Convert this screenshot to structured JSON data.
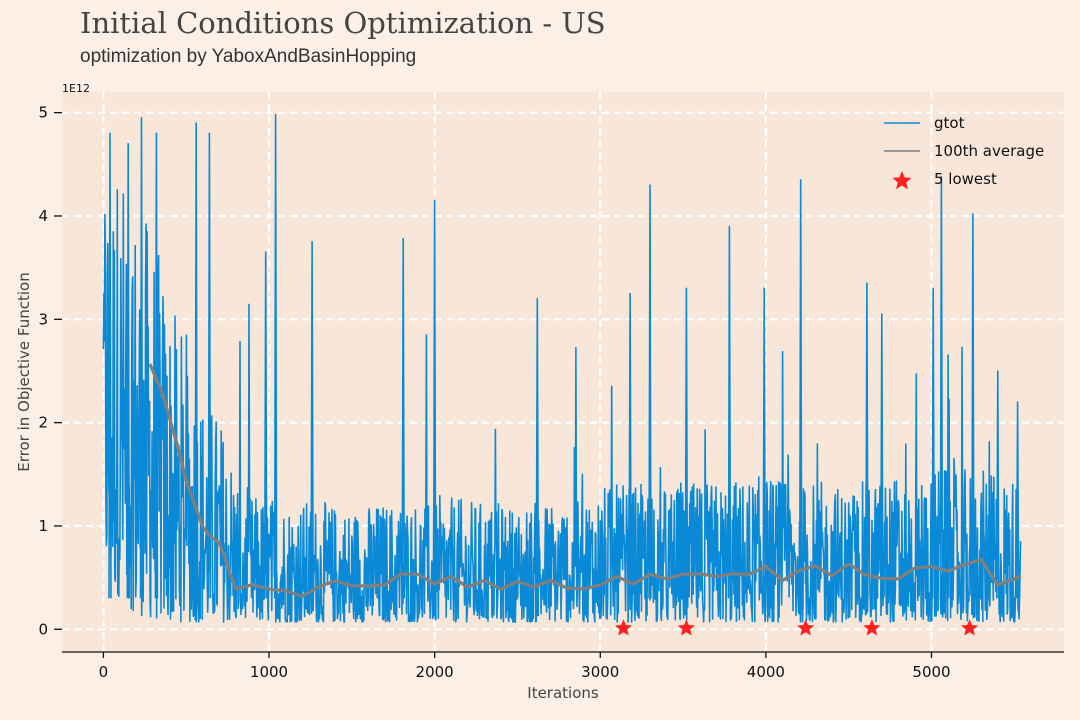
{
  "title": "Initial Conditions Optimization - US",
  "subtitle": "optimization by YaboxAndBasinHopping",
  "colors": {
    "background": "#fcf0e6",
    "plot_area": "#f8e6d9",
    "grid": "#ffffff",
    "gtot": "#0a8ad6",
    "average": "#7f7f7f",
    "lowest": "#ff2020"
  },
  "chart_data": {
    "type": "line",
    "xlabel": "Iterations",
    "ylabel": "Error in Objective Function",
    "y_scale_label": "1E12",
    "xlim": [
      -250,
      5800
    ],
    "ylim": [
      -0.22,
      5.2
    ],
    "x_ticks": [
      0,
      1000,
      2000,
      3000,
      4000,
      5000
    ],
    "y_ticks": [
      0,
      1,
      2,
      3,
      4,
      5
    ],
    "x_tick_labels": [
      "0",
      "1000",
      "2000",
      "3000",
      "4000",
      "5000"
    ],
    "y_tick_labels": [
      "0",
      "1",
      "2",
      "3",
      "4",
      "5"
    ],
    "grid": true,
    "legend_position": "top-right",
    "series": [
      {
        "name": "gtot",
        "kind": "noisy-line",
        "x_range": [
          0,
          5540
        ],
        "envelope_x": [
          0,
          100,
          200,
          300,
          400,
          500,
          600,
          700,
          800,
          900,
          1000,
          1500,
          2000,
          2500,
          3000,
          3500,
          4000,
          4500,
          5000,
          5540
        ],
        "envelope_high": [
          4.8,
          4.6,
          4.2,
          3.9,
          3.2,
          2.8,
          2.3,
          2.1,
          1.6,
          1.3,
          1.3,
          1.2,
          1.3,
          1.2,
          1.4,
          1.4,
          1.5,
          1.4,
          1.6,
          1.5
        ],
        "envelope_low": [
          0.55,
          0.3,
          0.15,
          0.1,
          0.08,
          0.07,
          0.07,
          0.07,
          0.07,
          0.07,
          0.07,
          0.07,
          0.07,
          0.07,
          0.07,
          0.07,
          0.07,
          0.07,
          0.07,
          0.07
        ],
        "spikes": [
          {
            "x": 40,
            "y": 4.8
          },
          {
            "x": 150,
            "y": 4.7
          },
          {
            "x": 230,
            "y": 4.95
          },
          {
            "x": 320,
            "y": 4.8
          },
          {
            "x": 560,
            "y": 4.9
          },
          {
            "x": 640,
            "y": 4.8
          },
          {
            "x": 1040,
            "y": 4.98
          },
          {
            "x": 980,
            "y": 3.65
          },
          {
            "x": 1260,
            "y": 3.75
          },
          {
            "x": 1810,
            "y": 3.78
          },
          {
            "x": 2000,
            "y": 4.15
          },
          {
            "x": 2620,
            "y": 3.2
          },
          {
            "x": 3300,
            "y": 4.3
          },
          {
            "x": 3180,
            "y": 3.25
          },
          {
            "x": 3520,
            "y": 3.3
          },
          {
            "x": 3780,
            "y": 3.9
          },
          {
            "x": 3990,
            "y": 3.3
          },
          {
            "x": 4210,
            "y": 4.35
          },
          {
            "x": 4610,
            "y": 3.35
          },
          {
            "x": 4700,
            "y": 3.05
          },
          {
            "x": 5010,
            "y": 3.3
          },
          {
            "x": 5060,
            "y": 4.38
          },
          {
            "x": 5250,
            "y": 4.02
          },
          {
            "x": 5400,
            "y": 2.5
          },
          {
            "x": 5520,
            "y": 2.2
          }
        ]
      },
      {
        "name": "100th average",
        "kind": "line",
        "x": [
          280,
          350,
          400,
          450,
          500,
          550,
          600,
          650,
          700,
          750,
          800,
          900,
          1000,
          1100,
          1200,
          1300,
          1400,
          1500,
          1600,
          1700,
          1800,
          1900,
          2000,
          2100,
          2200,
          2300,
          2400,
          2500,
          2600,
          2700,
          2800,
          2900,
          3000,
          3100,
          3200,
          3300,
          3400,
          3500,
          3600,
          3700,
          3800,
          3900,
          4000,
          4100,
          4200,
          4300,
          4400,
          4500,
          4600,
          4700,
          4800,
          4900,
          5000,
          5100,
          5200,
          5300,
          5400,
          5540
        ],
        "y": [
          2.58,
          2.3,
          2.05,
          1.75,
          1.45,
          1.2,
          1.0,
          0.88,
          0.85,
          0.6,
          0.4,
          0.42,
          0.4,
          0.36,
          0.33,
          0.4,
          0.48,
          0.41,
          0.43,
          0.42,
          0.55,
          0.52,
          0.45,
          0.5,
          0.42,
          0.46,
          0.4,
          0.45,
          0.42,
          0.46,
          0.41,
          0.38,
          0.44,
          0.5,
          0.45,
          0.52,
          0.5,
          0.52,
          0.55,
          0.5,
          0.55,
          0.52,
          0.62,
          0.46,
          0.58,
          0.6,
          0.53,
          0.62,
          0.54,
          0.48,
          0.5,
          0.58,
          0.62,
          0.55,
          0.64,
          0.66,
          0.44,
          0.5
        ]
      },
      {
        "name": "5 lowest",
        "kind": "scatter",
        "x": [
          3140,
          3520,
          4240,
          4640,
          5230
        ],
        "y": [
          0.01,
          0.01,
          0.01,
          0.01,
          0.01
        ]
      }
    ]
  }
}
